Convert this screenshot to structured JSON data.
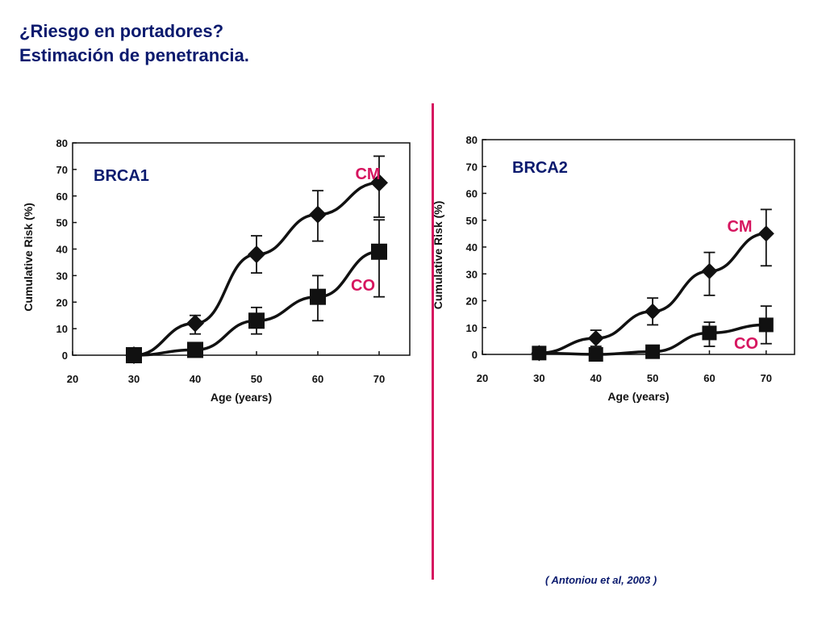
{
  "title": {
    "line1": "¿Riesgo en portadores?",
    "line2": "Estimación de penetrancia."
  },
  "citation": "( Antoniou et al, 2003 )",
  "colors": {
    "title": "#0a1a6e",
    "accent": "#d6155f",
    "ink": "#111111"
  },
  "chart_data": [
    {
      "type": "line",
      "label": "BRCA1",
      "xlabel": "Age (years)",
      "ylabel": "Cumulative Risk (%)",
      "xlim": [
        20,
        75
      ],
      "ylim": [
        0,
        80
      ],
      "x_ticks": [
        20,
        30,
        40,
        50,
        60,
        70
      ],
      "y_ticks": [
        0,
        10,
        20,
        30,
        40,
        50,
        60,
        70,
        80
      ],
      "grid": false,
      "series": [
        {
          "name": "CM",
          "marker": "diamond",
          "x": [
            30,
            40,
            50,
            60,
            70
          ],
          "y": [
            0,
            12,
            38,
            53,
            65
          ],
          "err_low": [
            0,
            8,
            31,
            43,
            52
          ],
          "err_high": [
            0,
            15,
            45,
            62,
            75
          ]
        },
        {
          "name": "CO",
          "marker": "square",
          "x": [
            30,
            40,
            50,
            60,
            70
          ],
          "y": [
            0,
            2,
            13,
            22,
            39
          ],
          "err_low": [
            0,
            0,
            8,
            13,
            22
          ],
          "err_high": [
            0,
            2,
            18,
            30,
            51
          ]
        }
      ]
    },
    {
      "type": "line",
      "label": "BRCA2",
      "xlabel": "Age (years)",
      "ylabel": "Cumulative Risk (%)",
      "xlim": [
        20,
        75
      ],
      "ylim": [
        0,
        80
      ],
      "x_ticks": [
        20,
        30,
        40,
        50,
        60,
        70
      ],
      "y_ticks": [
        0,
        10,
        20,
        30,
        40,
        50,
        60,
        70,
        80
      ],
      "grid": false,
      "series": [
        {
          "name": "CM",
          "marker": "diamond",
          "x": [
            30,
            40,
            50,
            60,
            70
          ],
          "y": [
            0.5,
            6,
            16,
            31,
            45
          ],
          "err_low": [
            0.5,
            3,
            11,
            22,
            33
          ],
          "err_high": [
            0.5,
            9,
            21,
            38,
            54
          ]
        },
        {
          "name": "CO",
          "marker": "square",
          "x": [
            30,
            40,
            50,
            60,
            70
          ],
          "y": [
            0.5,
            0,
            1,
            8,
            11
          ],
          "err_low": [
            0.5,
            0,
            0,
            3,
            4
          ],
          "err_high": [
            0.5,
            0,
            1,
            12,
            18
          ]
        }
      ]
    }
  ]
}
